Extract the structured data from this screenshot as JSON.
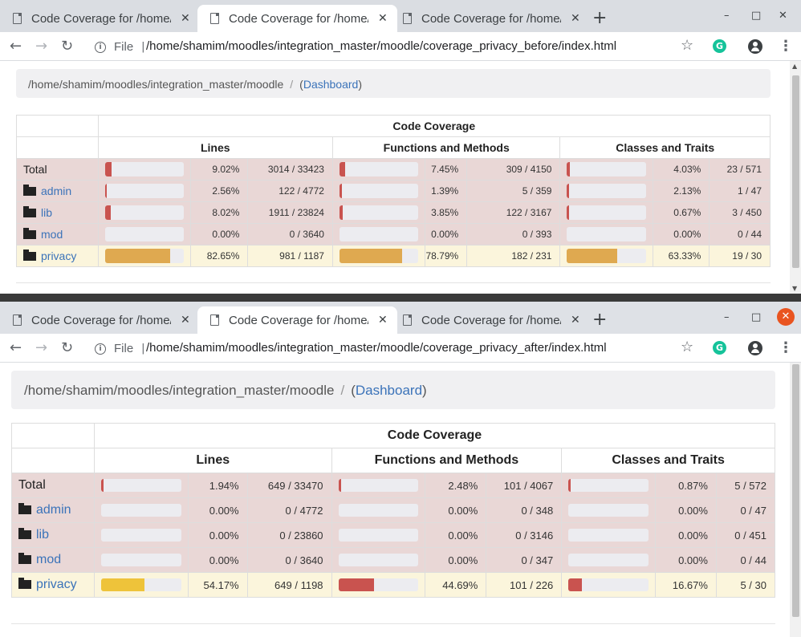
{
  "tab_label": "Code Coverage for /home/shamim/moodles/integration_master/moodle",
  "tab_label_short": "Code Coverage for /home",
  "new_tab": "+",
  "window_controls": {
    "minimize": "–",
    "maximize": "□",
    "close": "✕"
  },
  "nav": {
    "back": "←",
    "forward": "→",
    "reload": "↻"
  },
  "url_prefix": "File",
  "menu_icon": "⋮",
  "star_icon": "☆",
  "grammarly_icon": "G",
  "windows": [
    {
      "url": "/home/shamim/moodles/integration_master/moodle/coverage_privacy_before/index.html",
      "breadcrumb_path": "/home/shamim/moodles/integration_master/moodle",
      "dashboard_link": "Dashboard",
      "rows": [
        {
          "name": "Total",
          "lines_pct": "9.02%",
          "lines_cnt": "3014 / 33423",
          "fn_pct": "7.45%",
          "fn_cnt": "309 / 4150",
          "cls_pct": "4.03%",
          "cls_cnt": "23 / 571"
        },
        {
          "name": "admin",
          "lines_pct": "2.56%",
          "lines_cnt": "122 / 4772",
          "fn_pct": "1.39%",
          "fn_cnt": "5 / 359",
          "cls_pct": "2.13%",
          "cls_cnt": "1 / 47"
        },
        {
          "name": "lib",
          "lines_pct": "8.02%",
          "lines_cnt": "1911 / 23824",
          "fn_pct": "3.85%",
          "fn_cnt": "122 / 3167",
          "cls_pct": "0.67%",
          "cls_cnt": "3 / 450"
        },
        {
          "name": "mod",
          "lines_pct": "0.00%",
          "lines_cnt": "0 / 3640",
          "fn_pct": "0.00%",
          "fn_cnt": "0 / 393",
          "cls_pct": "0.00%",
          "cls_cnt": "0 / 44"
        },
        {
          "name": "privacy",
          "lines_pct": "82.65%",
          "lines_cnt": "981 / 1187",
          "fn_pct": "78.79%",
          "fn_cnt": "182 / 231",
          "cls_pct": "63.33%",
          "cls_cnt": "19 / 30"
        }
      ]
    },
    {
      "url": "/home/shamim/moodles/integration_master/moodle/coverage_privacy_after/index.html",
      "breadcrumb_path": "/home/shamim/moodles/integration_master/moodle",
      "dashboard_link": "Dashboard",
      "rows": [
        {
          "name": "Total",
          "lines_pct": "1.94%",
          "lines_cnt": "649 / 33470",
          "fn_pct": "2.48%",
          "fn_cnt": "101 / 4067",
          "cls_pct": "0.87%",
          "cls_cnt": "5 / 572"
        },
        {
          "name": "admin",
          "lines_pct": "0.00%",
          "lines_cnt": "0 / 4772",
          "fn_pct": "0.00%",
          "fn_cnt": "0 / 348",
          "cls_pct": "0.00%",
          "cls_cnt": "0 / 47"
        },
        {
          "name": "lib",
          "lines_pct": "0.00%",
          "lines_cnt": "0 / 23860",
          "fn_pct": "0.00%",
          "fn_cnt": "0 / 3146",
          "cls_pct": "0.00%",
          "cls_cnt": "0 / 451"
        },
        {
          "name": "mod",
          "lines_pct": "0.00%",
          "lines_cnt": "0 / 3640",
          "fn_pct": "0.00%",
          "fn_cnt": "0 / 347",
          "cls_pct": "0.00%",
          "cls_cnt": "0 / 44"
        },
        {
          "name": "privacy",
          "lines_pct": "54.17%",
          "lines_cnt": "649 / 1198",
          "fn_pct": "44.69%",
          "fn_cnt": "101 / 226",
          "cls_pct": "16.67%",
          "cls_cnt": "5 / 30"
        }
      ]
    }
  ],
  "table_headers": {
    "group": "Code Coverage",
    "lines": "Lines",
    "functions": "Functions and Methods",
    "classes": "Classes and Traits"
  },
  "colors": {
    "danger": "#c9534f",
    "warning_before": "#dfa950",
    "warning_after": "#eec33a",
    "danger_row": "#e9d7d6",
    "warning_row": "#fbf5dc",
    "link": "#3b73b9"
  }
}
